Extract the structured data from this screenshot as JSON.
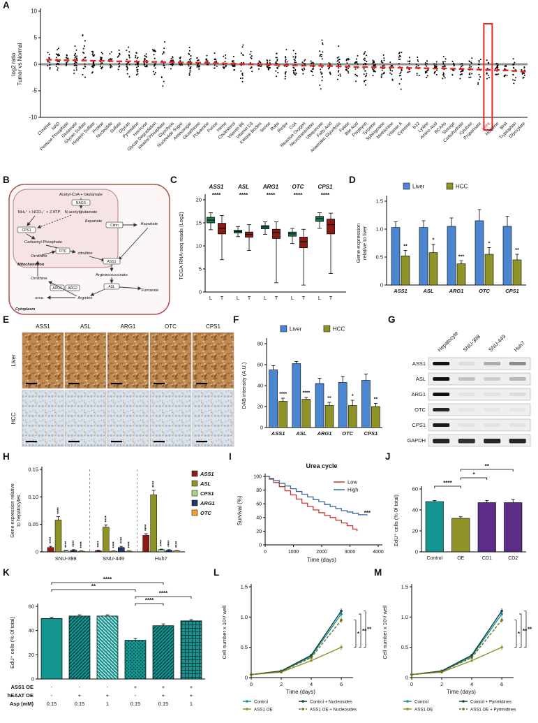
{
  "labels": {
    "A": "A",
    "B": "B",
    "C": "C",
    "D": "D",
    "E": "E",
    "F": "F",
    "G": "G",
    "H": "H",
    "I": "I",
    "J": "J",
    "K": "K",
    "L": "L",
    "M": "M"
  },
  "colors": {
    "liver_blue": "#4a86d2",
    "hcc_olive": "#8f9226",
    "teal": "#15958f",
    "purple": "#5b2d86",
    "dark_red": "#8c1c13",
    "box_green": "#17804d",
    "navy": "#1f3864",
    "orange": "#f4a328",
    "light_green": "#a8d08d",
    "km_low": "#c0392b",
    "km_high": "#3465a8",
    "highlight_red": "#e8251f",
    "dark_teal": "#0a3f44",
    "dark_olive": "#6b6d1a"
  },
  "diagram_B": {
    "nodes": {
      "acetyl": "Acetyl-CoA + Glutamate",
      "nags": "NAGS",
      "nag": "N-acetylglutamate",
      "nh4": "NH₄⁺ + HCO₃⁻ + 2 ATP",
      "cps1": "CPS1",
      "carbamyl": "Carbamyl Phosphate",
      "otc": "OTC",
      "citrulline": "citrulline",
      "citrin": "Citrin",
      "asp_mito": "Aspartate",
      "asp_cyto": "Aspartate",
      "orn_mito": "Ornithine",
      "orn_cyto": "Ornithine",
      "ass1": "ASS1",
      "argsucc": "Argininosuccinate",
      "asl": "ASL",
      "arg1": "ARG1",
      "arg2": "ARG2",
      "urea": "urea",
      "arginine": "Arginine",
      "fumarate": "Fumarate",
      "mito_label": "Mitochondrion",
      "cyto_label": "Cytoplasm"
    }
  },
  "panelE": {
    "columns": [
      "ASS1",
      "ASL",
      "ARG1",
      "OTC",
      "CPS1"
    ],
    "rows": [
      "Liver",
      "HCC"
    ]
  },
  "panelG": {
    "lanes": [
      "Hepatocyte",
      "SNU-398",
      "SNU-449",
      "Huh7"
    ],
    "rows": [
      {
        "name": "ASS1",
        "bands": [
          1,
          0.08,
          0.3,
          0.45
        ]
      },
      {
        "name": "ASL",
        "bands": [
          1,
          0.2,
          0.15,
          0.25
        ]
      },
      {
        "name": "ARG1",
        "bands": [
          1,
          0.05,
          0.05,
          0.08
        ]
      },
      {
        "name": "OTC",
        "bands": [
          0.9,
          0.04,
          0.04,
          0.04
        ]
      },
      {
        "name": "CPS1",
        "bands": [
          0.95,
          0.05,
          0.05,
          0.05
        ]
      },
      {
        "name": "GAPDH",
        "bands": [
          0.9,
          0.85,
          0.9,
          0.9
        ]
      }
    ]
  },
  "chart_data": {
    "A": {
      "type": "scatter",
      "ylabel_lines": [
        "log2 ratio",
        "Tumor vs Normal"
      ],
      "ylim": [
        -10,
        10
      ],
      "yticks": [
        "10",
        "5",
        "0",
        "-5",
        "-10"
      ],
      "highlight": "Urea",
      "categories": [
        "Creatine",
        "NAD",
        "Pentose Phosphate",
        "Glutamate",
        "Glycan Sulfate",
        "Heparin Sulfate",
        "Proline",
        "Nucleotide",
        "Sulfate",
        "Glycan",
        "Pyrimidine",
        "Hormone",
        "Glycan Degradation",
        "Inositol Phosphate",
        "Glycolysis",
        "Nucleotide Sugar",
        "Aminosugar",
        "Glutathione",
        "Polyamine",
        "Purine",
        "Heme",
        "Cholesterol",
        "Vitamin B6",
        "Vitamin D3",
        "Ketone Bodies",
        "Serine",
        "Rabs",
        "Redox",
        "CoA",
        "Reactive Oxygen",
        "Neurotransmitter",
        "Ubiquinone",
        "Fatty Acid",
        "Anaerobic Glycolysis",
        "Folate",
        "Bile Acid",
        "Porphyrin",
        "Tyrosine",
        "Sphingosine",
        "Methionine",
        "Vitamin A",
        "Cysteine",
        "B12",
        "Lysine",
        "Amino Acid",
        "BCAAs",
        "Storage",
        "Carbohydrate",
        "Xylulose",
        "Propanoate",
        "Urea",
        "Histidine",
        "BH4",
        "Tryptophan",
        "Glyoxylate"
      ],
      "means": [
        0.85,
        0.8,
        0.75,
        0.75,
        0.7,
        0.65,
        0.65,
        0.6,
        0.55,
        0.55,
        0.5,
        0.5,
        0.45,
        0.4,
        0.4,
        0.35,
        0.3,
        0.3,
        0.25,
        0.2,
        0.15,
        0.1,
        0.05,
        0.0,
        0.0,
        -0.05,
        -0.1,
        -0.15,
        -0.2,
        -0.25,
        -0.3,
        -0.3,
        -0.35,
        -0.4,
        -0.45,
        -0.5,
        -0.5,
        -0.55,
        -0.6,
        -0.6,
        -0.65,
        -0.7,
        -0.7,
        -0.75,
        -0.8,
        -0.8,
        -0.85,
        -0.9,
        -0.95,
        -1.0,
        -1.05,
        -1.1,
        -1.15,
        -1.25,
        -1.35
      ]
    },
    "C": {
      "type": "box",
      "ylabel": "TCGA RNA-seq reads (Log2)",
      "ylim": [
        0,
        20
      ],
      "yticks": [
        "0",
        "5",
        "10",
        "15",
        "20"
      ],
      "pair_labels": [
        "L",
        "T"
      ],
      "genes": [
        {
          "name": "ASS1",
          "sig": "****",
          "L": [
            13.5,
            15.0,
            15.6,
            16.2,
            17.2
          ],
          "T": [
            7.0,
            12.6,
            13.8,
            14.9,
            16.6
          ]
        },
        {
          "name": "ASL",
          "sig": "****",
          "L": [
            12.0,
            12.8,
            13.1,
            13.4,
            14.2
          ],
          "T": [
            9.0,
            11.9,
            12.5,
            13.0,
            14.6
          ]
        },
        {
          "name": "ARG1",
          "sig": "****",
          "L": [
            12.5,
            13.7,
            14.1,
            14.4,
            15.2
          ],
          "T": [
            2.0,
            11.6,
            12.9,
            13.6,
            15.2
          ]
        },
        {
          "name": "OTC",
          "sig": "****",
          "L": [
            10.5,
            12.1,
            12.6,
            13.0,
            13.8
          ],
          "T": [
            1.5,
            9.6,
            10.9,
            11.9,
            13.6
          ]
        },
        {
          "name": "CPS1",
          "sig": "****",
          "L": [
            13.8,
            15.3,
            15.9,
            16.4,
            17.2
          ],
          "T": [
            4.0,
            12.6,
            14.6,
            15.8,
            17.1
          ]
        }
      ]
    },
    "D": {
      "type": "bar",
      "ylabel_lines": [
        "Gene expression",
        "relative to liver"
      ],
      "ylim": [
        0,
        1.5
      ],
      "yticks": [
        "0",
        "0.5",
        "1.0",
        "1.5"
      ],
      "legend": [
        "Liver",
        "HCC"
      ],
      "categories": [
        "ASS1",
        "ASL",
        "ARG1",
        "OTC",
        "CPS1"
      ],
      "liver": {
        "values": [
          1.03,
          1.03,
          1.05,
          1.15,
          1.05
        ],
        "err": [
          0.1,
          0.12,
          0.15,
          0.2,
          0.18
        ]
      },
      "hcc": {
        "values": [
          0.52,
          0.58,
          0.38,
          0.55,
          0.45
        ],
        "err": [
          0.1,
          0.15,
          0.05,
          0.12,
          0.1
        ],
        "sig": [
          "**",
          "*",
          "***",
          "*",
          "**"
        ]
      }
    },
    "F": {
      "type": "bar",
      "ylabel": "DAB intensity (A.U.)",
      "ylim": [
        0,
        80
      ],
      "yticks": [
        "0",
        "20",
        "40",
        "60",
        "80"
      ],
      "legend": [
        "Liver",
        "HCC"
      ],
      "categories": [
        "ASS1",
        "ASL",
        "ARG1",
        "OTC",
        "CPS1"
      ],
      "liver": {
        "values": [
          55,
          61,
          42,
          43,
          45
        ],
        "err": [
          4,
          2,
          5,
          6,
          6
        ]
      },
      "hcc": {
        "values": [
          25,
          27,
          21,
          21,
          20
        ],
        "err": [
          3,
          2,
          3,
          5,
          3
        ],
        "sig": [
          "****",
          "****",
          "**",
          "*",
          "**"
        ]
      }
    },
    "H": {
      "type": "bar",
      "ylabel_lines": [
        "Gene expression relative",
        "to hepatocytes"
      ],
      "ylim": [
        0,
        0.15
      ],
      "yticks": [
        "0",
        "0.05",
        "0.10",
        "0.15"
      ],
      "series": [
        "ASS1",
        "ASL",
        "CPS1",
        "ARG1",
        "OTC"
      ],
      "series_colors": [
        "dark_red",
        "hcc_olive",
        "light_green",
        "navy",
        "orange"
      ],
      "groups": [
        {
          "name": "SNU-398",
          "values": [
            0.008,
            0.058,
            0.0015,
            0.003,
            0.001
          ],
          "err": [
            0.002,
            0.006,
            0.001,
            0.001,
            0.0005
          ]
        },
        {
          "name": "SNU-449",
          "values": [
            0.002,
            0.045,
            0.001,
            0.008,
            0.001
          ],
          "err": [
            0.001,
            0.004,
            0.0005,
            0.002,
            0.0005
          ]
        },
        {
          "name": "Huh7",
          "values": [
            0.03,
            0.104,
            0.004,
            0.003,
            0.002
          ],
          "err": [
            0.003,
            0.008,
            0.001,
            0.001,
            0.0005
          ]
        }
      ],
      "sig": "****"
    },
    "I": {
      "type": "line",
      "title": "Urea cycle",
      "xlabel": "Time (days)",
      "ylabel": "Survival (%)",
      "xlim": [
        0,
        4000
      ],
      "ylim": [
        0,
        100
      ],
      "xticks": [
        "0",
        "1000",
        "2000",
        "3000",
        "4000"
      ],
      "yticks": [
        "0",
        "20",
        "40",
        "60",
        "80",
        "100"
      ],
      "series": [
        {
          "name": "Low",
          "color": "km_low",
          "points": [
            [
              0,
              100
            ],
            [
              150,
              96
            ],
            [
              300,
              91
            ],
            [
              500,
              85
            ],
            [
              700,
              79
            ],
            [
              900,
              73
            ],
            [
              1100,
              67
            ],
            [
              1300,
              61
            ],
            [
              1500,
              56
            ],
            [
              1700,
              51
            ],
            [
              1900,
              47
            ],
            [
              2100,
              43
            ],
            [
              2300,
              40
            ],
            [
              2500,
              36
            ],
            [
              2700,
              32
            ],
            [
              2900,
              28
            ],
            [
              3100,
              23
            ],
            [
              3250,
              20
            ]
          ]
        },
        {
          "name": "High",
          "color": "km_high",
          "points": [
            [
              0,
              100
            ],
            [
              150,
              97
            ],
            [
              300,
              94
            ],
            [
              500,
              90
            ],
            [
              700,
              86
            ],
            [
              900,
              82
            ],
            [
              1100,
              78
            ],
            [
              1300,
              74
            ],
            [
              1500,
              70
            ],
            [
              1700,
              66
            ],
            [
              1900,
              63
            ],
            [
              2100,
              59
            ],
            [
              2300,
              56
            ],
            [
              2500,
              53
            ],
            [
              2700,
              50
            ],
            [
              2900,
              48
            ],
            [
              3100,
              46
            ],
            [
              3300,
              44
            ],
            [
              3600,
              43
            ]
          ]
        }
      ],
      "sig": "***"
    },
    "J": {
      "type": "bar",
      "ylabel": "EdU⁺ cells (% 0f total)",
      "ylim": [
        0,
        60
      ],
      "yticks": [
        "0",
        "20",
        "40",
        "60"
      ],
      "categories": [
        "Control",
        "OE",
        "CD1",
        "CD2"
      ],
      "values": [
        48,
        32,
        47,
        47
      ],
      "err": [
        1,
        1.5,
        2,
        3
      ],
      "bar_colors": [
        "teal",
        "hcc_olive",
        "purple",
        "purple"
      ],
      "brackets": [
        {
          "from": 0,
          "to": 1,
          "label": "****",
          "level": 0
        },
        {
          "from": 1,
          "to": 2,
          "label": "*",
          "level": 1
        },
        {
          "from": 1,
          "to": 3,
          "label": "**",
          "level": 2
        }
      ]
    },
    "K": {
      "type": "bar",
      "ylabel": "EdU⁺ cells (% 0f total)",
      "ylim": [
        0,
        60
      ],
      "yticks": [
        "0",
        "20",
        "40",
        "60"
      ],
      "values": [
        50,
        52,
        52,
        32,
        44,
        48
      ],
      "err": [
        1,
        1,
        1,
        1.5,
        1.5,
        1
      ],
      "patterns": [
        "solid",
        "diag",
        "diag2",
        "dots",
        "diag",
        "grid"
      ],
      "brackets": [
        {
          "from": 3,
          "to": 4,
          "label": "****",
          "level": 0
        },
        {
          "from": 3,
          "to": 5,
          "label": "****",
          "level": 1
        },
        {
          "from": 0,
          "to": 3,
          "label": "**",
          "level": 2
        },
        {
          "from": 0,
          "to": 4,
          "label": "****",
          "level": 3
        }
      ],
      "table": {
        "rows": [
          {
            "label": "ASS1 OE",
            "values": [
              "-",
              "-",
              "-",
              "+",
              "+",
              "+"
            ]
          },
          {
            "label": "hEAAT OE",
            "values": [
              "-",
              "+",
              "+",
              "-",
              "+",
              "+"
            ]
          },
          {
            "label": "Asp (mM)",
            "values": [
              "0.15",
              "0.15",
              "1",
              "0.15",
              "0.15",
              "1"
            ]
          }
        ]
      }
    },
    "L": {
      "type": "line",
      "xlabel": "Time (days)",
      "ylabel": "Cell number x 10⁶/ well",
      "x": [
        0,
        2,
        4,
        6
      ],
      "xticks": [
        "0",
        "2",
        "4",
        "6"
      ],
      "yticks": [
        "0",
        "0.5",
        "1.0",
        "1.5"
      ],
      "ylim": [
        0,
        1.5
      ],
      "series": [
        {
          "name": "Control",
          "color": "teal",
          "dash": false,
          "values": [
            0.05,
            0.1,
            0.35,
            1.05
          ]
        },
        {
          "name": "Control + Nucleosides",
          "color": "dark_teal",
          "dash": false,
          "values": [
            0.05,
            0.11,
            0.37,
            1.1
          ]
        },
        {
          "name": "ASS1 OE",
          "color": "hcc_olive",
          "dash": false,
          "values": [
            0.05,
            0.09,
            0.28,
            0.5
          ]
        },
        {
          "name": "ASS1 OE + Nucleosides",
          "color": "dark_olive",
          "dash": true,
          "values": [
            0.05,
            0.1,
            0.33,
            0.95
          ]
        }
      ],
      "sig": [
        "*",
        "**",
        "**"
      ]
    },
    "M": {
      "type": "line",
      "xlabel": "Time (days)",
      "ylabel": "Cell number x 10⁶/ well",
      "x": [
        0,
        2,
        4,
        6
      ],
      "xticks": [
        "0",
        "2",
        "4",
        "6"
      ],
      "yticks": [
        "0",
        "0.5",
        "1.0",
        "1.5"
      ],
      "ylim": [
        0,
        1.5
      ],
      "series": [
        {
          "name": "Control",
          "color": "teal",
          "dash": false,
          "values": [
            0.05,
            0.1,
            0.35,
            1.05
          ]
        },
        {
          "name": "Control + Pyrimidines",
          "color": "dark_teal",
          "dash": false,
          "values": [
            0.05,
            0.11,
            0.37,
            1.1
          ]
        },
        {
          "name": "ASS1 OE",
          "color": "hcc_olive",
          "dash": false,
          "values": [
            0.05,
            0.09,
            0.28,
            0.5
          ]
        },
        {
          "name": "ASS1 OE + Pyrimidines",
          "color": "dark_olive",
          "dash": true,
          "values": [
            0.05,
            0.1,
            0.33,
            0.95
          ]
        }
      ],
      "sig": [
        "*",
        "**",
        "**"
      ]
    }
  }
}
